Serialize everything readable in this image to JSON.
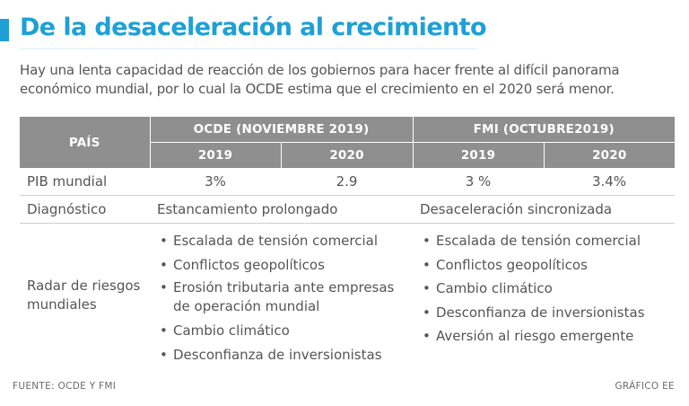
{
  "title": "De la desaceleración al crecimiento",
  "intro": {
    "line1": "Hay una lenta capacidad de reacción de los gobiernos para hacer frente al difícil panorama",
    "line2": "económico mundial, por lo cual la OCDE estima que el crecimiento en el 2020 será menor."
  },
  "table": {
    "col_pais": "PAÍS",
    "group_ocde": "OCDE (NOVIEMBRE 2019)",
    "group_fmi": "FMI (OCTUBRE2019)",
    "years": [
      "2019",
      "2020",
      "2019",
      "2020"
    ],
    "pib": {
      "label": "PIB mundial",
      "values": [
        "3%",
        "2.9",
        "3 %",
        "3.4%"
      ]
    },
    "diagnostico": {
      "label": "Diagnóstico",
      "ocde": "Estancamiento prolongado",
      "fmi": "Desaceleración sincronizada"
    },
    "radar": {
      "label_line1": "Radar de riesgos",
      "label_line2": "mundiales",
      "ocde": [
        "Escalada de tensión comercial",
        "Conflictos geopolíticos",
        "Erosión tributaria ante empresas de operación mundial",
        "Cambio climático",
        "Desconfianza de inversionistas"
      ],
      "fmi": [
        "Escalada de tensión comercial",
        "Conflictos geopolíticos",
        "Cambio climático",
        "Desconfianza de inversionistas",
        "Aversión al riesgo emergente"
      ]
    }
  },
  "footer": {
    "source": "FUENTE: OCDE Y FMI",
    "credit": "GRÁFICO EE"
  },
  "colors": {
    "accent": "#1ea0d6",
    "header_bg": "#8f8f8f"
  }
}
